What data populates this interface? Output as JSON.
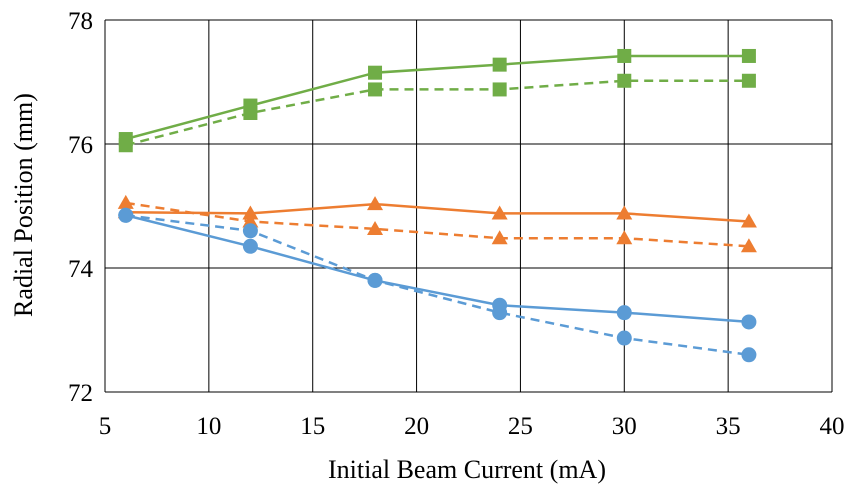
{
  "chart_data": {
    "type": "line",
    "title": "",
    "xlabel": "Initial Beam Current (mA)",
    "ylabel": "Radial Position (mm)",
    "xlim": [
      5,
      40
    ],
    "ylim": [
      72,
      78
    ],
    "xticks": [
      5,
      10,
      15,
      20,
      25,
      30,
      35,
      40
    ],
    "yticks": [
      72,
      74,
      76,
      78
    ],
    "grid": true,
    "legend": "none",
    "x": [
      6,
      12,
      18,
      24,
      30,
      36
    ],
    "series": [
      {
        "name": "green-solid",
        "color": "#70ad47",
        "marker": "square",
        "dash": false,
        "values": [
          76.08,
          76.62,
          77.15,
          77.28,
          77.42,
          77.42
        ]
      },
      {
        "name": "green-dashed",
        "color": "#70ad47",
        "marker": "square",
        "dash": true,
        "values": [
          75.98,
          76.5,
          76.88,
          76.88,
          77.02,
          77.02
        ]
      },
      {
        "name": "orange-solid",
        "color": "#ed7d31",
        "marker": "triangle",
        "dash": false,
        "values": [
          74.9,
          74.88,
          75.03,
          74.88,
          74.88,
          74.75
        ]
      },
      {
        "name": "orange-dashed",
        "color": "#ed7d31",
        "marker": "triangle",
        "dash": true,
        "values": [
          75.05,
          74.75,
          74.63,
          74.48,
          74.48,
          74.35
        ]
      },
      {
        "name": "blue-solid",
        "color": "#5b9bd5",
        "marker": "circle",
        "dash": false,
        "values": [
          74.85,
          74.35,
          73.8,
          73.4,
          73.28,
          73.13
        ]
      },
      {
        "name": "blue-dashed",
        "color": "#5b9bd5",
        "marker": "circle",
        "dash": true,
        "values": [
          74.85,
          74.6,
          73.8,
          73.28,
          72.87,
          72.6
        ]
      }
    ]
  }
}
